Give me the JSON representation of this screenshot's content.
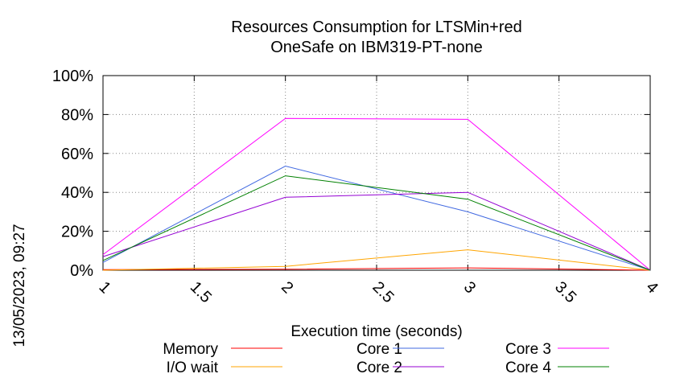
{
  "chart_data": {
    "type": "line",
    "title_line1": "Resources Consumption for LTSMin+red",
    "title_line2": "OneSafe on IBM319-PT-none",
    "xlabel": "Execution time (seconds)",
    "ylabel": "",
    "timestamp": "13/05/2023, 09:27",
    "xlim": [
      1,
      4
    ],
    "ylim": [
      0,
      100
    ],
    "x_ticks": [
      1,
      1.5,
      2,
      2.5,
      3,
      3.5,
      4
    ],
    "x_tick_labels": [
      "1",
      "1.5",
      "2",
      "2.5",
      "3",
      "3.5",
      "4"
    ],
    "y_ticks": [
      0,
      20,
      40,
      60,
      80,
      100
    ],
    "y_tick_labels": [
      "0%",
      "20%",
      "40%",
      "60%",
      "80%",
      "100%"
    ],
    "grid": true,
    "legend_position": "bottom",
    "x": [
      1,
      2,
      3,
      4
    ],
    "series": [
      {
        "name": "Memory",
        "color": "#ff0000",
        "values": [
          0.3,
          0.5,
          1.2,
          0
        ]
      },
      {
        "name": "I/O wait",
        "color": "#ffa500",
        "values": [
          0,
          2,
          10.5,
          0
        ]
      },
      {
        "name": "Core 1",
        "color": "#4169e1",
        "values": [
          4,
          53.5,
          30,
          0
        ]
      },
      {
        "name": "Core 2",
        "color": "#9400d3",
        "values": [
          7,
          37.5,
          40,
          0
        ]
      },
      {
        "name": "Core 3",
        "color": "#ff00ff",
        "values": [
          8,
          78,
          77.5,
          0
        ]
      },
      {
        "name": "Core 4",
        "color": "#008000",
        "values": [
          5,
          48.5,
          36.5,
          0
        ]
      }
    ]
  }
}
